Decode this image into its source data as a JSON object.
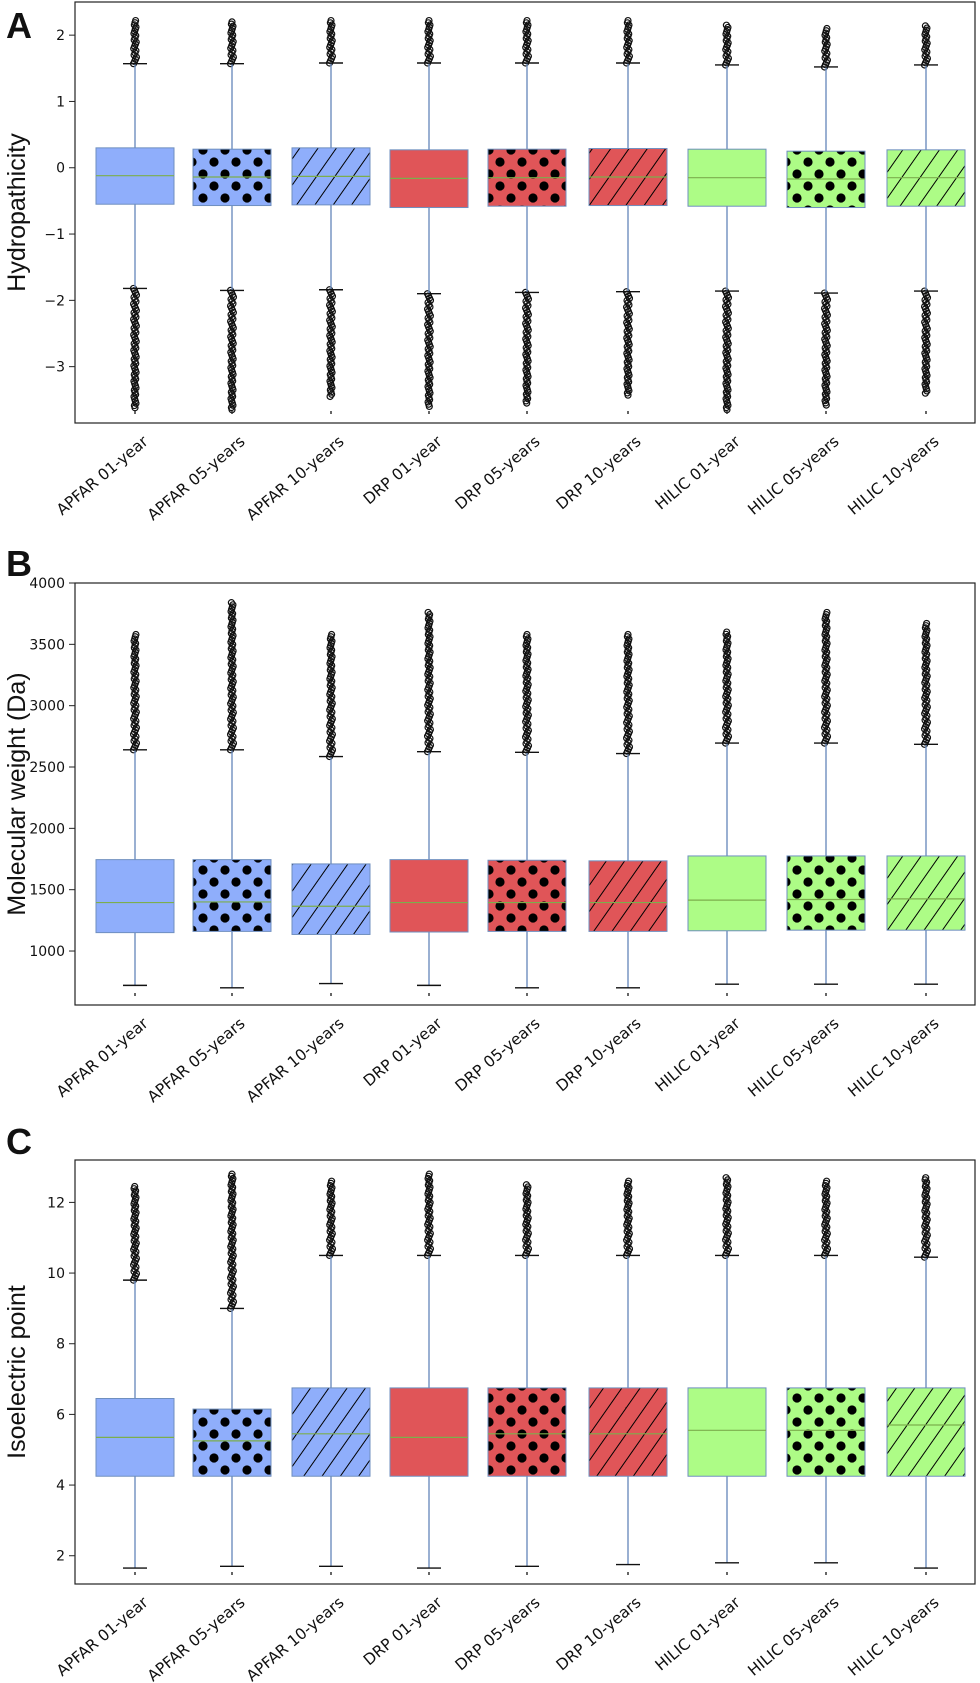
{
  "figure": {
    "colors": {
      "APFAR": "#8faefb",
      "DRP": "#e05558",
      "HILIC": "#adfc86",
      "whisker": "#6f8fbf",
      "median": "#7cae4c",
      "outlier": "#111111"
    },
    "patterns": [
      "solid",
      "dots",
      "hatch"
    ]
  },
  "chart_data": [
    {
      "type": "box",
      "panel_letter": "A",
      "ylabel": "Hydropathicity",
      "ylim": [
        -3.85,
        2.5
      ],
      "yticks": [
        -3,
        -2,
        -1,
        0,
        1,
        2
      ],
      "grid": false,
      "categories": [
        "APFAR 01-year",
        "APFAR 05-years",
        "APFAR 10-years",
        "DRP 01-year",
        "DRP 05-years",
        "DRP 10-years",
        "HILIC 01-year",
        "HILIC 05-years",
        "HILIC 10-years"
      ],
      "boxes": [
        {
          "group": "APFAR",
          "pattern": "solid",
          "whislo": -1.82,
          "q1": -0.55,
          "med": -0.12,
          "q3": 0.3,
          "whishi": 1.57,
          "flier_low": -3.62,
          "flier_high": 2.22
        },
        {
          "group": "APFAR",
          "pattern": "dots",
          "whislo": -1.85,
          "q1": -0.57,
          "med": -0.14,
          "q3": 0.28,
          "whishi": 1.57,
          "flier_low": -3.65,
          "flier_high": 2.2
        },
        {
          "group": "APFAR",
          "pattern": "hatch",
          "whislo": -1.84,
          "q1": -0.56,
          "med": -0.13,
          "q3": 0.3,
          "whishi": 1.58,
          "flier_low": -3.45,
          "flier_high": 2.22
        },
        {
          "group": "DRP",
          "pattern": "solid",
          "whislo": -1.9,
          "q1": -0.6,
          "med": -0.16,
          "q3": 0.27,
          "whishi": 1.58,
          "flier_low": -3.6,
          "flier_high": 2.22
        },
        {
          "group": "DRP",
          "pattern": "dots",
          "whislo": -1.88,
          "q1": -0.58,
          "med": -0.15,
          "q3": 0.28,
          "whishi": 1.58,
          "flier_low": -3.55,
          "flier_high": 2.22
        },
        {
          "group": "DRP",
          "pattern": "hatch",
          "whislo": -1.87,
          "q1": -0.57,
          "med": -0.14,
          "q3": 0.29,
          "whishi": 1.58,
          "flier_low": -3.43,
          "flier_high": 2.22
        },
        {
          "group": "HILIC",
          "pattern": "solid",
          "whislo": -1.86,
          "q1": -0.58,
          "med": -0.15,
          "q3": 0.28,
          "whishi": 1.55,
          "flier_low": -3.65,
          "flier_high": 2.15
        },
        {
          "group": "HILIC",
          "pattern": "dots",
          "whislo": -1.89,
          "q1": -0.6,
          "med": -0.17,
          "q3": 0.25,
          "whishi": 1.52,
          "flier_low": -3.58,
          "flier_high": 2.1
        },
        {
          "group": "HILIC",
          "pattern": "hatch",
          "whislo": -1.86,
          "q1": -0.58,
          "med": -0.15,
          "q3": 0.27,
          "whishi": 1.55,
          "flier_low": -3.4,
          "flier_high": 2.14
        }
      ]
    },
    {
      "type": "box",
      "panel_letter": "B",
      "ylabel": "Molecular weight (Da)",
      "ylim": [
        560,
        4000
      ],
      "yticks": [
        1000,
        1500,
        2000,
        2500,
        3000,
        3500,
        4000
      ],
      "grid": false,
      "categories": [
        "APFAR 01-year",
        "APFAR 05-years",
        "APFAR 10-years",
        "DRP 01-year",
        "DRP 05-years",
        "DRP 10-years",
        "HILIC 01-year",
        "HILIC 05-years",
        "HILIC 10-years"
      ],
      "boxes": [
        {
          "group": "APFAR",
          "pattern": "solid",
          "whislo": 720,
          "q1": 1150,
          "med": 1395,
          "q3": 1745,
          "whishi": 2640,
          "flier_high": 3580
        },
        {
          "group": "APFAR",
          "pattern": "dots",
          "whislo": 700,
          "q1": 1160,
          "med": 1400,
          "q3": 1745,
          "whishi": 2640,
          "flier_high": 3840
        },
        {
          "group": "APFAR",
          "pattern": "hatch",
          "whislo": 735,
          "q1": 1135,
          "med": 1365,
          "q3": 1710,
          "whishi": 2585,
          "flier_high": 3580
        },
        {
          "group": "DRP",
          "pattern": "solid",
          "whislo": 720,
          "q1": 1155,
          "med": 1395,
          "q3": 1745,
          "whishi": 2625,
          "flier_high": 3760
        },
        {
          "group": "DRP",
          "pattern": "dots",
          "whislo": 700,
          "q1": 1160,
          "med": 1395,
          "q3": 1740,
          "whishi": 2620,
          "flier_high": 3580
        },
        {
          "group": "DRP",
          "pattern": "hatch",
          "whislo": 700,
          "q1": 1160,
          "med": 1395,
          "q3": 1735,
          "whishi": 2610,
          "flier_high": 3580
        },
        {
          "group": "HILIC",
          "pattern": "solid",
          "whislo": 730,
          "q1": 1165,
          "med": 1415,
          "q3": 1775,
          "whishi": 2695,
          "flier_high": 3600
        },
        {
          "group": "HILIC",
          "pattern": "dots",
          "whislo": 730,
          "q1": 1170,
          "med": 1420,
          "q3": 1775,
          "whishi": 2695,
          "flier_high": 3760
        },
        {
          "group": "HILIC",
          "pattern": "hatch",
          "whislo": 730,
          "q1": 1170,
          "med": 1425,
          "q3": 1775,
          "whishi": 2685,
          "flier_high": 3670
        }
      ]
    },
    {
      "type": "box",
      "panel_letter": "C",
      "ylabel": "Isoelectric point",
      "ylim": [
        1.2,
        13.2
      ],
      "yticks": [
        2,
        4,
        6,
        8,
        10,
        12
      ],
      "grid": false,
      "categories": [
        "APFAR 01-year",
        "APFAR 05-years",
        "APFAR 10-years",
        "DRP 01-year",
        "DRP 05-years",
        "DRP 10-years",
        "HILIC 01-year",
        "HILIC 05-years",
        "HILIC 10-years"
      ],
      "boxes": [
        {
          "group": "APFAR",
          "pattern": "solid",
          "whislo": 1.65,
          "q1": 4.25,
          "med": 5.35,
          "q3": 6.45,
          "whishi": 9.8,
          "flier_high": 12.45
        },
        {
          "group": "APFAR",
          "pattern": "dots",
          "whislo": 1.7,
          "q1": 4.25,
          "med": 5.25,
          "q3": 6.15,
          "whishi": 9.0,
          "flier_high": 12.8
        },
        {
          "group": "APFAR",
          "pattern": "hatch",
          "whislo": 1.7,
          "q1": 4.25,
          "med": 5.45,
          "q3": 6.75,
          "whishi": 10.5,
          "flier_high": 12.6
        },
        {
          "group": "DRP",
          "pattern": "solid",
          "whislo": 1.65,
          "q1": 4.25,
          "med": 5.35,
          "q3": 6.75,
          "whishi": 10.5,
          "flier_high": 12.8
        },
        {
          "group": "DRP",
          "pattern": "dots",
          "whislo": 1.7,
          "q1": 4.25,
          "med": 5.45,
          "q3": 6.75,
          "whishi": 10.5,
          "flier_high": 12.5
        },
        {
          "group": "DRP",
          "pattern": "hatch",
          "whislo": 1.75,
          "q1": 4.25,
          "med": 5.45,
          "q3": 6.75,
          "whishi": 10.5,
          "flier_high": 12.6
        },
        {
          "group": "HILIC",
          "pattern": "solid",
          "whislo": 1.8,
          "q1": 4.25,
          "med": 5.55,
          "q3": 6.75,
          "whishi": 10.5,
          "flier_high": 12.7
        },
        {
          "group": "HILIC",
          "pattern": "dots",
          "whislo": 1.8,
          "q1": 4.25,
          "med": 5.55,
          "q3": 6.75,
          "whishi": 10.5,
          "flier_high": 12.6
        },
        {
          "group": "HILIC",
          "pattern": "hatch",
          "whislo": 1.65,
          "q1": 4.25,
          "med": 5.7,
          "q3": 6.75,
          "whishi": 10.45,
          "flier_high": 12.7
        }
      ]
    }
  ]
}
